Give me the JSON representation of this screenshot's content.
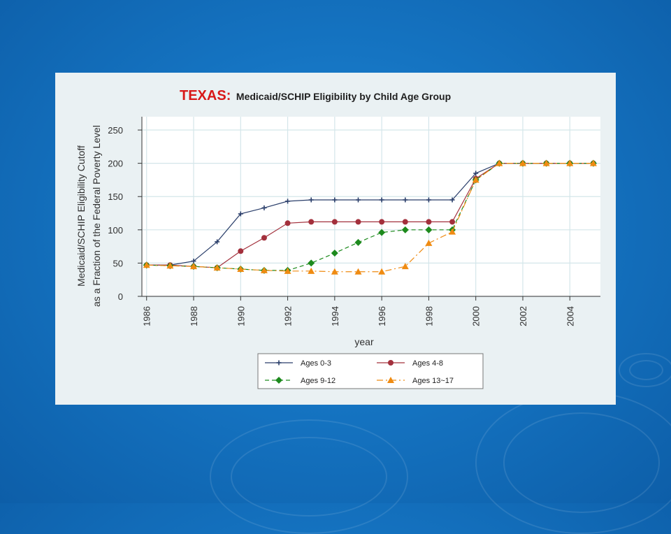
{
  "chart_data": {
    "type": "line",
    "title": "TEXAS",
    "subtitle": "Medicaid/SCHIP Eligibility by Child Age Group",
    "xlabel": "year",
    "ylabel_line1": "Medicaid/SCHIP Eligibility Cutoff",
    "ylabel_line2": "as a Fraction of the Federal Poverty Level",
    "xlim": [
      1985.8,
      2005.3
    ],
    "ylim": [
      0,
      270
    ],
    "x_ticks": [
      1986,
      1988,
      1990,
      1992,
      1994,
      1996,
      1998,
      2000,
      2002,
      2004
    ],
    "y_ticks": [
      0,
      50,
      100,
      150,
      200,
      250
    ],
    "grid": true,
    "legend_position": "bottom",
    "x": [
      1986,
      1987,
      1988,
      1989,
      1990,
      1991,
      1992,
      1993,
      1994,
      1995,
      1996,
      1997,
      1998,
      1999,
      2000,
      2001,
      2002,
      2003,
      2004,
      2005
    ],
    "series": [
      {
        "name": "Ages 0-3",
        "color": "#2b3f6b",
        "dash": "solid",
        "marker": "plus",
        "values": [
          47,
          47,
          53,
          82,
          124,
          133,
          143,
          145,
          145,
          145,
          145,
          145,
          145,
          145,
          185,
          200,
          200,
          200,
          200,
          200
        ]
      },
      {
        "name": "Ages 4-8",
        "color": "#a3303c",
        "dash": "solid",
        "marker": "circle",
        "values": [
          47,
          47,
          45,
          43,
          68,
          88,
          110,
          112,
          112,
          112,
          112,
          112,
          112,
          112,
          177,
          200,
          200,
          200,
          200,
          200
        ]
      },
      {
        "name": "Ages 9-12",
        "color": "#1d8a1d",
        "dash": "dashed",
        "marker": "diamond",
        "values": [
          47,
          46,
          45,
          43,
          41,
          39,
          39,
          50,
          65,
          81,
          96,
          100,
          100,
          100,
          175,
          200,
          200,
          200,
          200,
          200
        ]
      },
      {
        "name": "Ages 13~17",
        "color": "#ef8b12",
        "dash": "dashdot",
        "marker": "triangle",
        "values": [
          47,
          46,
          45,
          43,
          41,
          39,
          38,
          38,
          37,
          37,
          37,
          45,
          80,
          97,
          175,
          200,
          200,
          200,
          200,
          200
        ]
      }
    ]
  },
  "colors": {
    "panel_background": "#eaf1f3",
    "plot_background": "#ffffff",
    "grid": "#d4e6ea",
    "title_accent": "#d81818"
  }
}
